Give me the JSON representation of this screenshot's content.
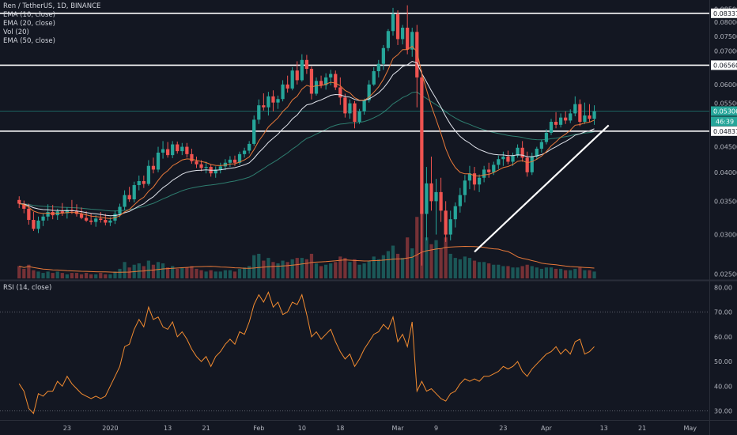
{
  "legend": {
    "symbol_line": "Ren / TetherUS, 1D, BINANCE",
    "ema10": "EMA (10, close)",
    "ema20": "EMA (20, close)",
    "vol": "Vol (20)",
    "ema50": "EMA (50, close)"
  },
  "rsi_legend": "RSI (14, close)",
  "colors": {
    "background": "#131722",
    "up": "#26a69a",
    "down": "#ef5350",
    "ema10": "#e8793a",
    "ema20": "#e0e3eb",
    "ema50": "#2e7d6f",
    "volume_ma": "#e8793a",
    "rsi": "#f28b30",
    "horizontal_levels": "#ffffff",
    "trendline": "#ffffff"
  },
  "chart_data": [
    {
      "type": "candlestick",
      "title": "Ren / TetherUS, 1D, BINANCE",
      "y_scale": "log",
      "ylim": [
        0.0245,
        0.088
      ],
      "price_axis_ticks": [
        "0.08500",
        "0.08000",
        "0.07500",
        "0.07000",
        "0.06500",
        "0.06000",
        "0.05500",
        "0.05000",
        "0.04500",
        "0.04000",
        "0.03500",
        "0.03000",
        "0.02500"
      ],
      "date_axis_ticks": [
        {
          "label": "23",
          "day": -9
        },
        {
          "label": "2020",
          "day": 0
        },
        {
          "label": "13",
          "day": 12
        },
        {
          "label": "21",
          "day": 20
        },
        {
          "label": "Feb",
          "day": 31
        },
        {
          "label": "10",
          "day": 40
        },
        {
          "label": "18",
          "day": 48
        },
        {
          "label": "Mar",
          "day": 60
        },
        {
          "label": "9",
          "day": 68
        },
        {
          "label": "23",
          "day": 82
        },
        {
          "label": "Apr",
          "day": 91
        },
        {
          "label": "13",
          "day": 103
        },
        {
          "label": "21",
          "day": 111
        },
        {
          "label": "May",
          "day": 121
        }
      ],
      "horizontal_levels": [
        {
          "label": "0.08337",
          "value": 0.08337
        },
        {
          "label": "0.06560",
          "value": 0.0656
        },
        {
          "label": "0.04837",
          "value": 0.04837
        }
      ],
      "current_price": {
        "label": "0.05306",
        "value": 0.05306
      },
      "countdown": "46:39",
      "trendline": {
        "from": {
          "day": 76,
          "price": 0.0277
        },
        "to": {
          "day": 104,
          "price": 0.0497
        }
      },
      "ohlc": [
        [
          0.0352,
          0.0358,
          0.0339,
          0.0346
        ],
        [
          0.0346,
          0.0351,
          0.0331,
          0.0338
        ],
        [
          0.0338,
          0.0346,
          0.0314,
          0.0321
        ],
        [
          0.0321,
          0.0333,
          0.0305,
          0.0308
        ],
        [
          0.0308,
          0.0326,
          0.0302,
          0.032
        ],
        [
          0.032,
          0.0331,
          0.0312,
          0.0326
        ],
        [
          0.0326,
          0.0345,
          0.032,
          0.0333
        ],
        [
          0.0333,
          0.0344,
          0.0322,
          0.0328
        ],
        [
          0.0328,
          0.0338,
          0.0321,
          0.0334
        ],
        [
          0.0334,
          0.0347,
          0.0327,
          0.0331
        ],
        [
          0.0331,
          0.034,
          0.0323,
          0.0336
        ],
        [
          0.0336,
          0.0352,
          0.033,
          0.0334
        ],
        [
          0.0334,
          0.0345,
          0.0326,
          0.033
        ],
        [
          0.033,
          0.034,
          0.0322,
          0.0324
        ],
        [
          0.0324,
          0.0334,
          0.0318,
          0.032
        ],
        [
          0.032,
          0.0331,
          0.0314,
          0.0318
        ],
        [
          0.0318,
          0.0328,
          0.0311,
          0.0323
        ],
        [
          0.0323,
          0.0333,
          0.0317,
          0.0321
        ],
        [
          0.0321,
          0.033,
          0.0313,
          0.0317
        ],
        [
          0.0317,
          0.0325,
          0.0312,
          0.032
        ],
        [
          0.032,
          0.0335,
          0.0315,
          0.033
        ],
        [
          0.033,
          0.0346,
          0.0325,
          0.0341
        ],
        [
          0.0341,
          0.0368,
          0.0336,
          0.036
        ],
        [
          0.036,
          0.0374,
          0.0349,
          0.0353
        ],
        [
          0.0353,
          0.0383,
          0.0348,
          0.0377
        ],
        [
          0.0377,
          0.0394,
          0.0368,
          0.0384
        ],
        [
          0.0384,
          0.0394,
          0.0372,
          0.0379
        ],
        [
          0.0379,
          0.0423,
          0.0376,
          0.0412
        ],
        [
          0.0412,
          0.0428,
          0.0398,
          0.0405
        ],
        [
          0.0405,
          0.045,
          0.04,
          0.0438
        ],
        [
          0.0438,
          0.0462,
          0.0426,
          0.0445
        ],
        [
          0.0445,
          0.046,
          0.0428,
          0.0433
        ],
        [
          0.0433,
          0.0462,
          0.0427,
          0.0455
        ],
        [
          0.0455,
          0.0461,
          0.0436,
          0.0441
        ],
        [
          0.0441,
          0.0458,
          0.0433,
          0.045
        ],
        [
          0.045,
          0.0458,
          0.0428,
          0.0435
        ],
        [
          0.0435,
          0.0446,
          0.0416,
          0.0421
        ],
        [
          0.0421,
          0.043,
          0.0408,
          0.0415
        ],
        [
          0.0415,
          0.0423,
          0.0402,
          0.0408
        ],
        [
          0.0408,
          0.042,
          0.0398,
          0.041
        ],
        [
          0.041,
          0.0415,
          0.0392,
          0.0398
        ],
        [
          0.0398,
          0.0411,
          0.039,
          0.0405
        ],
        [
          0.0405,
          0.0418,
          0.0398,
          0.0411
        ],
        [
          0.0411,
          0.0425,
          0.0404,
          0.0418
        ],
        [
          0.0418,
          0.0431,
          0.041,
          0.0424
        ],
        [
          0.0424,
          0.0432,
          0.0412,
          0.0418
        ],
        [
          0.0418,
          0.044,
          0.0414,
          0.0435
        ],
        [
          0.0435,
          0.0448,
          0.0428,
          0.0442
        ],
        [
          0.0442,
          0.0462,
          0.0436,
          0.0456
        ],
        [
          0.0456,
          0.052,
          0.0452,
          0.051
        ],
        [
          0.051,
          0.056,
          0.05,
          0.0545
        ],
        [
          0.0545,
          0.0576,
          0.0532,
          0.054
        ],
        [
          0.054,
          0.058,
          0.052,
          0.0568
        ],
        [
          0.0568,
          0.0584,
          0.053,
          0.0552
        ],
        [
          0.0552,
          0.057,
          0.0536,
          0.0561
        ],
        [
          0.0561,
          0.0612,
          0.0555,
          0.06
        ],
        [
          0.06,
          0.0625,
          0.0578,
          0.0589
        ],
        [
          0.0589,
          0.065,
          0.0584,
          0.064
        ],
        [
          0.064,
          0.0668,
          0.06,
          0.0612
        ],
        [
          0.0612,
          0.069,
          0.0608,
          0.0672
        ],
        [
          0.0672,
          0.0688,
          0.063,
          0.0645
        ],
        [
          0.0645,
          0.0652,
          0.056,
          0.0575
        ],
        [
          0.0575,
          0.062,
          0.057,
          0.061
        ],
        [
          0.061,
          0.0625,
          0.059,
          0.0598
        ],
        [
          0.0598,
          0.0632,
          0.0586,
          0.062
        ],
        [
          0.062,
          0.0642,
          0.0598,
          0.063
        ],
        [
          0.063,
          0.064,
          0.0585,
          0.0592
        ],
        [
          0.0592,
          0.062,
          0.0546,
          0.0565
        ],
        [
          0.0565,
          0.0575,
          0.0515,
          0.0525
        ],
        [
          0.0525,
          0.056,
          0.0512,
          0.055
        ],
        [
          0.055,
          0.0556,
          0.049,
          0.0505
        ],
        [
          0.0505,
          0.0536,
          0.05,
          0.053
        ],
        [
          0.053,
          0.0562,
          0.0522,
          0.0558
        ],
        [
          0.0558,
          0.0612,
          0.0552,
          0.06
        ],
        [
          0.06,
          0.065,
          0.0596,
          0.0638
        ],
        [
          0.0638,
          0.0672,
          0.062,
          0.066
        ],
        [
          0.066,
          0.072,
          0.0642,
          0.071
        ],
        [
          0.071,
          0.0775,
          0.07,
          0.0768
        ],
        [
          0.0768,
          0.0855,
          0.0752,
          0.083
        ],
        [
          0.083,
          0.0845,
          0.072,
          0.074
        ],
        [
          0.074,
          0.079,
          0.0722,
          0.078
        ],
        [
          0.078,
          0.0865,
          0.069,
          0.0705
        ],
        [
          0.0705,
          0.078,
          0.0682,
          0.0765
        ],
        [
          0.0765,
          0.079,
          0.054,
          0.062
        ],
        [
          0.062,
          0.064,
          0.026,
          0.033
        ],
        [
          0.033,
          0.041,
          0.0292,
          0.038
        ],
        [
          0.038,
          0.043,
          0.0335,
          0.035
        ],
        [
          0.035,
          0.0388,
          0.03,
          0.0365
        ],
        [
          0.0365,
          0.039,
          0.0318,
          0.0335
        ],
        [
          0.0335,
          0.035,
          0.029,
          0.03
        ],
        [
          0.03,
          0.0335,
          0.0292,
          0.0322
        ],
        [
          0.0322,
          0.0348,
          0.031,
          0.0342
        ],
        [
          0.0342,
          0.0372,
          0.0332,
          0.036
        ],
        [
          0.036,
          0.0395,
          0.0348,
          0.0385
        ],
        [
          0.0385,
          0.0412,
          0.037,
          0.0398
        ],
        [
          0.0398,
          0.041,
          0.0368,
          0.0378
        ],
        [
          0.0378,
          0.0396,
          0.0365,
          0.039
        ],
        [
          0.039,
          0.0412,
          0.0382,
          0.0405
        ],
        [
          0.0405,
          0.0418,
          0.039,
          0.04
        ],
        [
          0.04,
          0.042,
          0.0395,
          0.0414
        ],
        [
          0.0414,
          0.0432,
          0.0406,
          0.0425
        ],
        [
          0.0425,
          0.044,
          0.0412,
          0.043
        ],
        [
          0.043,
          0.0442,
          0.0415,
          0.042
        ],
        [
          0.042,
          0.0438,
          0.0412,
          0.0432
        ],
        [
          0.0432,
          0.0455,
          0.0428,
          0.0448
        ],
        [
          0.0448,
          0.0462,
          0.042,
          0.0428
        ],
        [
          0.0428,
          0.044,
          0.0392,
          0.04
        ],
        [
          0.04,
          0.0438,
          0.0395,
          0.043
        ],
        [
          0.043,
          0.045,
          0.0424,
          0.0446
        ],
        [
          0.0446,
          0.0465,
          0.0438,
          0.046
        ],
        [
          0.046,
          0.0488,
          0.0455,
          0.048
        ],
        [
          0.048,
          0.0512,
          0.0475,
          0.0505
        ],
        [
          0.0505,
          0.0528,
          0.049,
          0.0498
        ],
        [
          0.0498,
          0.0525,
          0.0492,
          0.0515
        ],
        [
          0.0515,
          0.053,
          0.05,
          0.0508
        ],
        [
          0.0508,
          0.0535,
          0.0502,
          0.0525
        ],
        [
          0.0525,
          0.0568,
          0.0518,
          0.0548
        ],
        [
          0.0548,
          0.056,
          0.0495,
          0.0505
        ],
        [
          0.0505,
          0.0552,
          0.05,
          0.052
        ],
        [
          0.052,
          0.0548,
          0.0505,
          0.0512
        ],
        [
          0.0512,
          0.0545,
          0.0498,
          0.053
        ]
      ],
      "volume": [
        9,
        7,
        10,
        6,
        5,
        4,
        5,
        4,
        5,
        4,
        3,
        4,
        4,
        3,
        4,
        3,
        3,
        4,
        3,
        3,
        5,
        7,
        12,
        8,
        10,
        11,
        9,
        13,
        10,
        12,
        11,
        8,
        9,
        7,
        8,
        8,
        9,
        7,
        6,
        5,
        6,
        5,
        5,
        6,
        6,
        5,
        7,
        8,
        9,
        17,
        18,
        13,
        15,
        12,
        11,
        13,
        12,
        14,
        15,
        15,
        14,
        18,
        11,
        9,
        10,
        11,
        12,
        16,
        15,
        12,
        14,
        10,
        11,
        13,
        16,
        14,
        17,
        20,
        24,
        18,
        15,
        30,
        22,
        45,
        50,
        30,
        25,
        28,
        22,
        30,
        18,
        15,
        14,
        16,
        15,
        13,
        12,
        12,
        11,
        10,
        10,
        9,
        9,
        8,
        8,
        9,
        10,
        9,
        8,
        7,
        8,
        8,
        7,
        7,
        6,
        6,
        7,
        8,
        6,
        6,
        5
      ],
      "volume_ma_last": 6.8
    },
    {
      "type": "line",
      "title": "RSI (14, close)",
      "ylim": [
        27,
        82
      ],
      "y_axis_ticks": [
        "80.00",
        "70.00",
        "60.00",
        "50.00",
        "40.00",
        "30.00"
      ],
      "guide_levels": [
        70,
        30
      ],
      "rsi": [
        41,
        38,
        31,
        29,
        37,
        36,
        38,
        38,
        42,
        40,
        44,
        41,
        39,
        37,
        36,
        35,
        36,
        35,
        36,
        40,
        44,
        48,
        56,
        57,
        63,
        67,
        64,
        72,
        67,
        68,
        64,
        63,
        66,
        60,
        62,
        59,
        55,
        52,
        50,
        52,
        48,
        52,
        54,
        57,
        59,
        57,
        62,
        61,
        66,
        73,
        77,
        74,
        78,
        72,
        74,
        69,
        70,
        74,
        73,
        77,
        69,
        60,
        62,
        59,
        61,
        63,
        58,
        54,
        51,
        53,
        48,
        51,
        55,
        58,
        61,
        62,
        65,
        63,
        68,
        58,
        61,
        56,
        66,
        38,
        42,
        38,
        39,
        37,
        35,
        34,
        37,
        38,
        41,
        43,
        42,
        43,
        42,
        44,
        44,
        45,
        46,
        48,
        47,
        48,
        50,
        46,
        44,
        47,
        49,
        51,
        53,
        54,
        56,
        53,
        55,
        53,
        58,
        59,
        53,
        54,
        56
      ]
    }
  ]
}
